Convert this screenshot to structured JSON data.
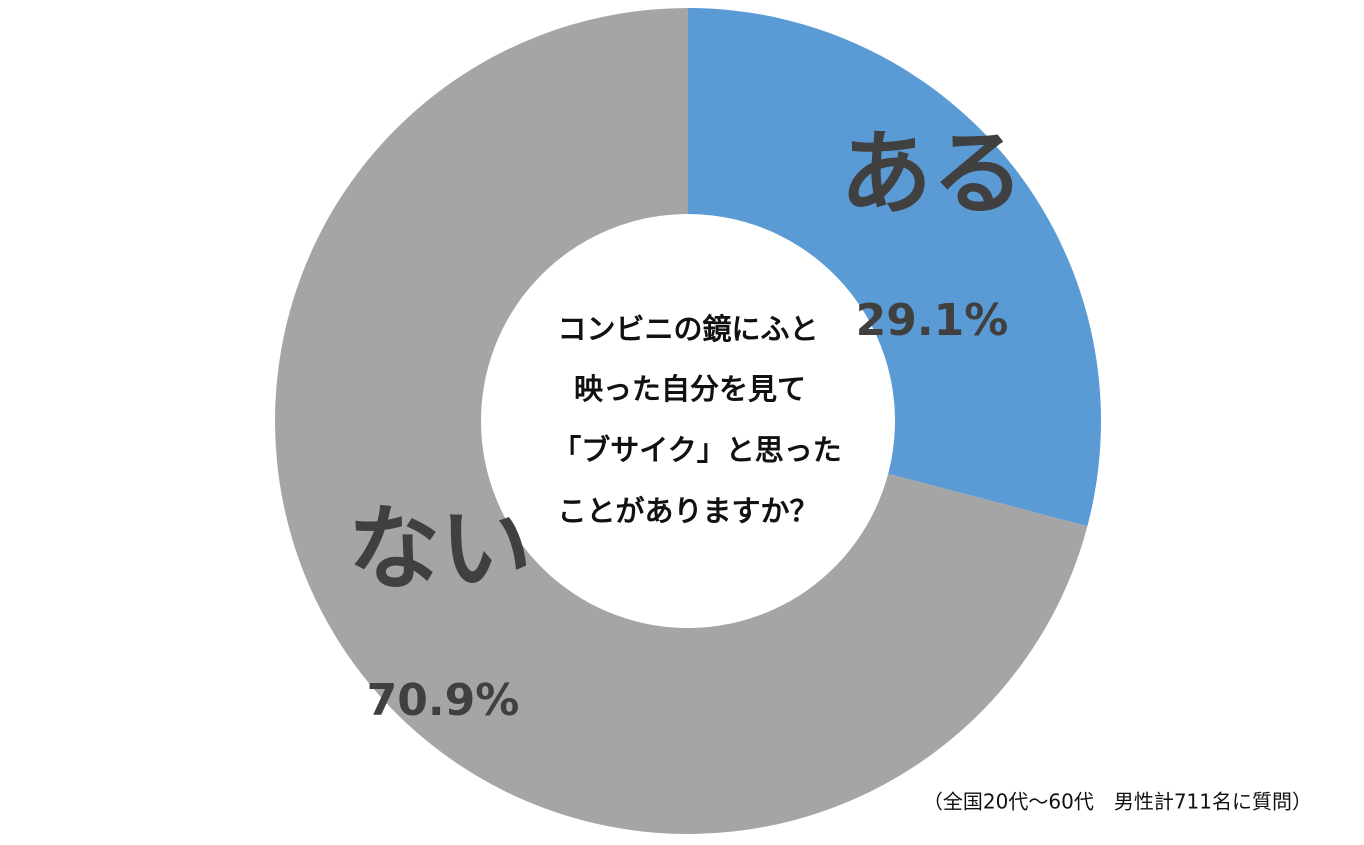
{
  "chart_data": {
    "type": "donut",
    "title": [
      "コンビニの鏡にふと",
      "映った自分を見て",
      "「ブサイク」と思った",
      "ことがありますか？"
    ],
    "categories": [
      "ある",
      "ない"
    ],
    "values": [
      29.1,
      70.9
    ],
    "value_labels": [
      "29.1%",
      "70.9%"
    ],
    "colors": [
      "#5b9bd5",
      "#a5a5a5"
    ],
    "note": "（全国20代～60代　男性計711名に質問）"
  }
}
